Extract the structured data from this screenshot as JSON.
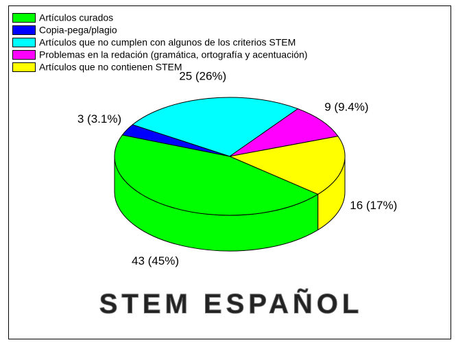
{
  "chart_data": {
    "type": "pie3d",
    "categories": [
      "Artículos curados",
      "Copia-pega/plagio",
      "Artículos que no cumplen con algunos de los criterios STEM",
      "Problemas en la redación (gramática, ortografía y acentuación)",
      "Artículos que no contienen STEM"
    ],
    "values": [
      43,
      3,
      25,
      9,
      16
    ],
    "value_labels": [
      "43 (45%)",
      "3 (3.1%)",
      "25 (26%)",
      "9 (9.4%)",
      "16 (17%)"
    ],
    "colors": [
      "#00ff00",
      "#0000ff",
      "#00ffff",
      "#ff00ff",
      "#ffff00"
    ]
  },
  "logo": "STEM ESPAÑOL"
}
